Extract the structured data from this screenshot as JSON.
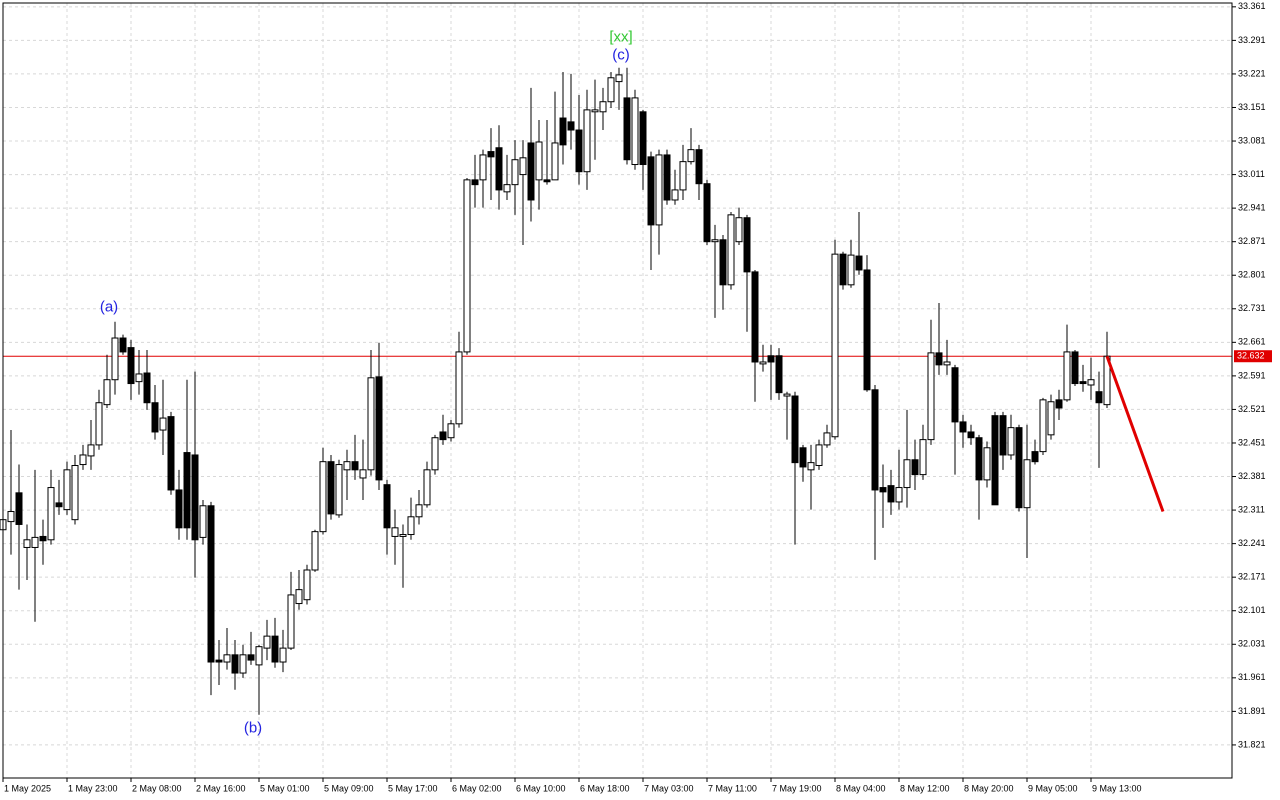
{
  "chart_data": {
    "type": "candlestick",
    "up_color": "#ffffff",
    "down_color": "#000000",
    "grid": true,
    "ylim": [
      31.752,
      33.369
    ],
    "yticks": [
      33.361,
      33.291,
      33.221,
      33.151,
      33.081,
      33.011,
      32.941,
      32.871,
      32.801,
      32.731,
      32.661,
      32.591,
      32.521,
      32.451,
      32.381,
      32.311,
      32.241,
      32.171,
      32.101,
      32.031,
      31.961,
      31.891,
      31.821
    ],
    "current_price": 32.632,
    "current_price_color": "#e00000",
    "categories": [
      "1 May 2025",
      null,
      null,
      null,
      null,
      null,
      null,
      null,
      "1 May 23:00",
      null,
      null,
      null,
      null,
      null,
      null,
      null,
      "2 May 08:00",
      null,
      null,
      null,
      null,
      null,
      null,
      null,
      "2 May 16:00",
      null,
      null,
      null,
      null,
      null,
      null,
      null,
      "5 May 01:00",
      null,
      null,
      null,
      null,
      null,
      null,
      null,
      "5 May 09:00",
      null,
      null,
      null,
      null,
      null,
      null,
      null,
      "5 May 17:00",
      null,
      null,
      null,
      null,
      null,
      null,
      null,
      "6 May 02:00",
      null,
      null,
      null,
      null,
      null,
      null,
      null,
      "6 May 10:00",
      null,
      null,
      null,
      null,
      null,
      null,
      null,
      "6 May 18:00",
      null,
      null,
      null,
      null,
      null,
      null,
      null,
      "7 May 03:00",
      null,
      null,
      null,
      null,
      null,
      null,
      null,
      "7 May 11:00",
      null,
      null,
      null,
      null,
      null,
      null,
      null,
      "7 May 19:00",
      null,
      null,
      null,
      null,
      null,
      null,
      null,
      "8 May 04:00",
      null,
      null,
      null,
      null,
      null,
      null,
      null,
      "8 May 12:00",
      null,
      null,
      null,
      null,
      null,
      null,
      null,
      "8 May 20:00",
      null,
      null,
      null,
      null,
      null,
      null,
      null,
      "9 May 05:00",
      null,
      null,
      null,
      null,
      null,
      null,
      null,
      "9 May 13:00",
      null,
      null
    ],
    "ohlc": [
      [
        32.27,
        32.395,
        32.207,
        32.291
      ],
      [
        32.287,
        32.478,
        32.218,
        32.308
      ],
      [
        32.347,
        32.406,
        32.145,
        32.281
      ],
      [
        32.233,
        32.281,
        32.165,
        32.249
      ],
      [
        32.233,
        32.395,
        32.078,
        32.254
      ],
      [
        32.256,
        32.291,
        32.197,
        32.247
      ],
      [
        32.249,
        32.395,
        32.239,
        32.358
      ],
      [
        32.326,
        32.374,
        32.301,
        32.318
      ],
      [
        32.312,
        32.412,
        32.301,
        32.395
      ],
      [
        32.291,
        32.426,
        32.281,
        32.404
      ],
      [
        32.406,
        32.447,
        32.395,
        32.426
      ],
      [
        32.424,
        32.499,
        32.395,
        32.447
      ],
      [
        32.447,
        32.562,
        32.437,
        32.535
      ],
      [
        32.531,
        32.635,
        32.524,
        32.583
      ],
      [
        32.583,
        32.704,
        32.552,
        32.67
      ],
      [
        32.67,
        32.677,
        32.635,
        32.641
      ],
      [
        32.65,
        32.666,
        32.541,
        32.575
      ],
      [
        32.579,
        32.645,
        32.552,
        32.595
      ],
      [
        32.597,
        32.645,
        32.52,
        32.535
      ],
      [
        32.535,
        32.572,
        32.458,
        32.474
      ],
      [
        32.478,
        32.583,
        32.426,
        32.503
      ],
      [
        32.506,
        32.516,
        32.343,
        32.353
      ],
      [
        32.353,
        32.395,
        32.249,
        32.274
      ],
      [
        32.431,
        32.583,
        32.249,
        32.274
      ],
      [
        32.426,
        32.6,
        32.17,
        32.249
      ],
      [
        32.254,
        32.332,
        32.239,
        32.32
      ],
      [
        32.32,
        32.328,
        31.925,
        31.994
      ],
      [
        31.998,
        32.04,
        31.946,
        31.994
      ],
      [
        31.994,
        32.065,
        31.978,
        32.009
      ],
      [
        32.009,
        32.04,
        31.936,
        31.971
      ],
      [
        31.971,
        32.03,
        31.961,
        32.009
      ],
      [
        32.009,
        32.057,
        31.988,
        31.998
      ],
      [
        31.988,
        32.03,
        31.884,
        32.026
      ],
      [
        32.023,
        32.082,
        31.998,
        32.048
      ],
      [
        32.048,
        32.086,
        31.982,
        31.994
      ],
      [
        31.994,
        32.061,
        31.973,
        32.023
      ],
      [
        32.023,
        32.182,
        32.019,
        32.134
      ],
      [
        32.116,
        32.186,
        32.103,
        32.145
      ],
      [
        32.124,
        32.197,
        32.114,
        32.186
      ],
      [
        32.186,
        32.27,
        32.182,
        32.266
      ],
      [
        32.266,
        32.441,
        32.26,
        32.412
      ],
      [
        32.412,
        32.426,
        32.291,
        32.303
      ],
      [
        32.301,
        32.416,
        32.295,
        32.406
      ],
      [
        32.395,
        32.437,
        32.332,
        32.412
      ],
      [
        32.412,
        32.468,
        32.374,
        32.395
      ],
      [
        32.378,
        32.458,
        32.332,
        32.395
      ],
      [
        32.395,
        32.645,
        32.383,
        32.587
      ],
      [
        32.589,
        32.66,
        32.353,
        32.374
      ],
      [
        32.364,
        32.374,
        32.218,
        32.274
      ],
      [
        32.256,
        32.312,
        32.197,
        32.274
      ],
      [
        32.256,
        32.281,
        32.149,
        32.26
      ],
      [
        32.26,
        32.337,
        32.249,
        32.297
      ],
      [
        32.297,
        32.353,
        32.281,
        32.322
      ],
      [
        32.322,
        32.412,
        32.316,
        32.395
      ],
      [
        32.395,
        32.468,
        32.385,
        32.462
      ],
      [
        32.474,
        32.51,
        32.447,
        32.458
      ],
      [
        32.462,
        32.499,
        32.454,
        32.491
      ],
      [
        32.491,
        32.683,
        32.483,
        32.641
      ],
      [
        32.641,
        33.004,
        32.635,
        33.0
      ],
      [
        33.0,
        33.052,
        32.942,
        32.99
      ],
      [
        33.0,
        33.063,
        32.942,
        33.052
      ],
      [
        33.059,
        33.108,
        32.958,
        33.048
      ],
      [
        33.067,
        33.114,
        32.938,
        32.979
      ],
      [
        32.975,
        33.052,
        32.958,
        32.99
      ],
      [
        32.99,
        33.083,
        32.927,
        33.042
      ],
      [
        33.011,
        33.083,
        32.864,
        33.046
      ],
      [
        33.077,
        33.192,
        32.913,
        32.958
      ],
      [
        33.0,
        33.125,
        32.938,
        33.079
      ],
      [
        33.0,
        33.125,
        32.99,
        32.996
      ],
      [
        33.0,
        33.184,
        33.0,
        33.077
      ],
      [
        33.129,
        33.225,
        33.032,
        33.073
      ],
      [
        33.121,
        33.221,
        33.063,
        33.104
      ],
      [
        33.104,
        33.177,
        32.99,
        33.017
      ],
      [
        33.017,
        33.188,
        32.979,
        33.146
      ],
      [
        33.142,
        33.209,
        33.042,
        33.146
      ],
      [
        33.142,
        33.192,
        33.104,
        33.163
      ],
      [
        33.163,
        33.225,
        33.15,
        33.213
      ],
      [
        33.205,
        33.234,
        33.146,
        33.219
      ],
      [
        33.171,
        33.234,
        33.032,
        33.042
      ],
      [
        33.032,
        33.188,
        33.021,
        33.171
      ],
      [
        33.142,
        33.146,
        32.979,
        33.032
      ],
      [
        33.048,
        33.059,
        32.812,
        32.906
      ],
      [
        32.906,
        33.063,
        32.844,
        33.052
      ],
      [
        33.052,
        33.063,
        32.948,
        32.958
      ],
      [
        32.958,
        33.021,
        32.948,
        32.979
      ],
      [
        32.979,
        33.073,
        32.958,
        33.038
      ],
      [
        33.038,
        33.108,
        33.032,
        33.063
      ],
      [
        33.063,
        33.073,
        32.958,
        32.992
      ],
      [
        32.992,
        33.0,
        32.864,
        32.871
      ],
      [
        32.871,
        32.906,
        32.712,
        32.875
      ],
      [
        32.875,
        32.885,
        32.729,
        32.781
      ],
      [
        32.781,
        32.933,
        32.771,
        32.927
      ],
      [
        32.871,
        32.942,
        32.864,
        32.921
      ],
      [
        32.921,
        32.927,
        32.683,
        32.808
      ],
      [
        32.808,
        32.812,
        32.537,
        32.62
      ],
      [
        32.616,
        32.656,
        32.6,
        32.62
      ],
      [
        32.633,
        32.656,
        32.541,
        32.62
      ],
      [
        32.633,
        32.649,
        32.541,
        32.556
      ],
      [
        32.549,
        32.558,
        32.458,
        32.553
      ],
      [
        32.549,
        32.558,
        32.239,
        32.41
      ],
      [
        32.441,
        32.447,
        32.37,
        32.401
      ],
      [
        32.395,
        32.447,
        32.312,
        32.41
      ],
      [
        32.404,
        32.458,
        32.395,
        32.447
      ],
      [
        32.447,
        32.489,
        32.441,
        32.472
      ],
      [
        32.464,
        32.875,
        32.458,
        32.845
      ],
      [
        32.845,
        32.85,
        32.771,
        32.781
      ],
      [
        32.781,
        32.875,
        32.775,
        32.843
      ],
      [
        32.841,
        32.933,
        32.802,
        32.812
      ],
      [
        32.812,
        32.843,
        32.558,
        32.562
      ],
      [
        32.562,
        32.572,
        32.207,
        32.353
      ],
      [
        32.358,
        32.406,
        32.274,
        32.349
      ],
      [
        32.362,
        32.395,
        32.301,
        32.328
      ],
      [
        32.328,
        32.437,
        32.312,
        32.358
      ],
      [
        32.358,
        32.52,
        32.316,
        32.416
      ],
      [
        32.416,
        32.458,
        32.353,
        32.385
      ],
      [
        32.385,
        32.489,
        32.374,
        32.458
      ],
      [
        32.458,
        32.708,
        32.447,
        32.639
      ],
      [
        32.639,
        32.743,
        32.593,
        32.614
      ],
      [
        32.614,
        32.666,
        32.593,
        32.62
      ],
      [
        32.608,
        32.614,
        32.385,
        32.495
      ],
      [
        32.495,
        32.51,
        32.441,
        32.474
      ],
      [
        32.474,
        32.489,
        32.447,
        32.462
      ],
      [
        32.462,
        32.468,
        32.291,
        32.374
      ],
      [
        32.374,
        32.454,
        32.358,
        32.441
      ],
      [
        32.508,
        32.516,
        32.322,
        32.322
      ],
      [
        32.508,
        32.516,
        32.395,
        32.426
      ],
      [
        32.426,
        32.51,
        32.416,
        32.483
      ],
      [
        32.483,
        32.489,
        32.308,
        32.316
      ],
      [
        32.316,
        32.489,
        32.211,
        32.416
      ],
      [
        32.433,
        32.458,
        32.406,
        32.412
      ],
      [
        32.433,
        32.545,
        32.426,
        32.541
      ],
      [
        32.468,
        32.552,
        32.458,
        32.537
      ],
      [
        32.541,
        32.562,
        32.499,
        32.524
      ],
      [
        32.541,
        32.698,
        32.537,
        32.641
      ],
      [
        32.641,
        32.645,
        32.57,
        32.575
      ],
      [
        32.579,
        32.614,
        32.558,
        32.575
      ],
      [
        32.572,
        32.629,
        32.541,
        32.583
      ],
      [
        32.558,
        32.6,
        32.399,
        32.535
      ],
      [
        32.531,
        32.683,
        32.524,
        32.632
      ]
    ],
    "forecast": {
      "color": "#e00000",
      "x": [
        138,
        145
      ],
      "values": [
        32.632,
        32.308
      ]
    },
    "annotations": [
      {
        "text": "(a)",
        "color": "#2323e0"
      },
      {
        "text": "(b)",
        "color": "#2323e0"
      },
      {
        "text": "(c)",
        "color": "#2323e0"
      },
      {
        "text": "[xx]",
        "color": "#32c832"
      }
    ]
  }
}
